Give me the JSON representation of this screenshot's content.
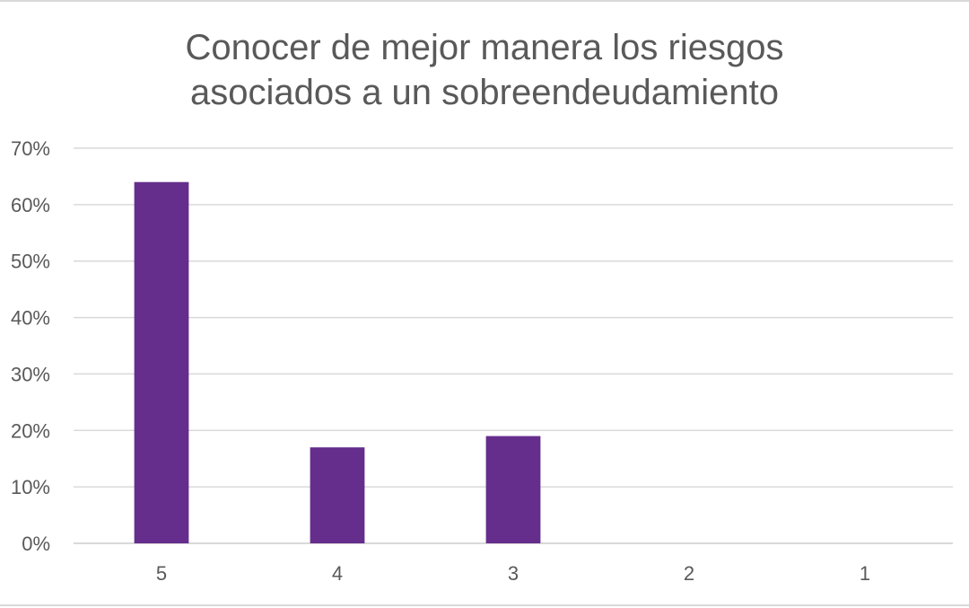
{
  "chart_data": {
    "type": "bar",
    "title_lines": [
      "Conocer de mejor manera los riesgos",
      "asociados a un sobreendeudamiento"
    ],
    "categories": [
      "5",
      "4",
      "3",
      "2",
      "1"
    ],
    "values": [
      64,
      17,
      19,
      0,
      0
    ],
    "value_unit": "%",
    "ylim": [
      0,
      70
    ],
    "yticks": [
      0,
      10,
      20,
      30,
      40,
      50,
      60,
      70
    ],
    "ytick_labels": [
      "0%",
      "10%",
      "20%",
      "30%",
      "40%",
      "50%",
      "60%",
      "70%"
    ],
    "grid": true,
    "legend": "none",
    "bar_color": "#652d8c",
    "grid_color": "#d9d9d9",
    "text_color": "#595959"
  }
}
